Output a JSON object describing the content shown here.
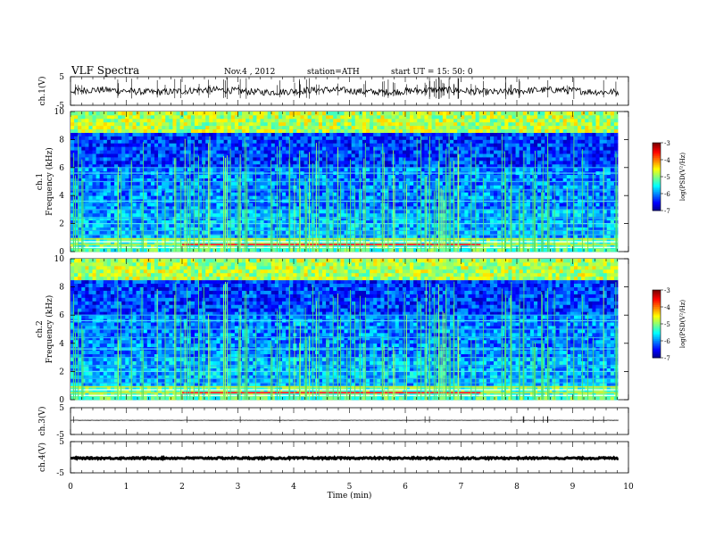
{
  "header": {
    "title": "VLF  Spectra",
    "date": "Nov.4  , 2012",
    "station": "station=ATH",
    "start": "start  UT  =    15: 50: 0"
  },
  "chart_data": [
    {
      "type": "line",
      "ylabel": "ch.1(V)",
      "ylim": [
        -5,
        5
      ],
      "yticks": [
        "5",
        "-5"
      ],
      "xlim": [
        0,
        10
      ]
    },
    {
      "type": "heatmap",
      "ylabel": "ch.1\nFrequency (kHz)",
      "ylabel_lines": [
        "ch.1",
        "Frequency (kHz)"
      ],
      "ylim": [
        0,
        10
      ],
      "yticks": [
        "0",
        "2",
        "4",
        "6",
        "8",
        "10"
      ],
      "xlim": [
        0,
        10
      ],
      "colorbar": {
        "label": "log(PSD(V²/Hz)",
        "range": [
          -7,
          -3
        ],
        "ticks": [
          "-3",
          "-4",
          "-5",
          "-6",
          "-7"
        ]
      }
    },
    {
      "type": "heatmap",
      "ylabel": "ch.2\nFrequency (kHz)",
      "ylabel_lines": [
        "ch.2",
        "Frequency (kHz)"
      ],
      "ylim": [
        0,
        10
      ],
      "yticks": [
        "0",
        "2",
        "4",
        "6",
        "8",
        "10"
      ],
      "xlim": [
        0,
        10
      ],
      "colorbar": {
        "label": "log(PSD(V²/Hz)",
        "range": [
          -7,
          -3
        ],
        "ticks": [
          "-3",
          "-4",
          "-5",
          "-6",
          "-7"
        ]
      }
    },
    {
      "type": "line",
      "ylabel": "ch.3(V)",
      "ylim": [
        -5,
        5
      ],
      "yticks": [
        "5",
        "-5"
      ],
      "xlim": [
        0,
        10
      ]
    },
    {
      "type": "line",
      "ylabel": "ch.4(V)",
      "ylim": [
        -5,
        5
      ],
      "yticks": [
        "5",
        "-5"
      ],
      "xlim": [
        0,
        10
      ],
      "x_ticks": [
        "0",
        "1",
        "2",
        "3",
        "4",
        "5",
        "6",
        "7",
        "8",
        "9",
        "10"
      ],
      "xlabel": "Time  (min)"
    }
  ]
}
